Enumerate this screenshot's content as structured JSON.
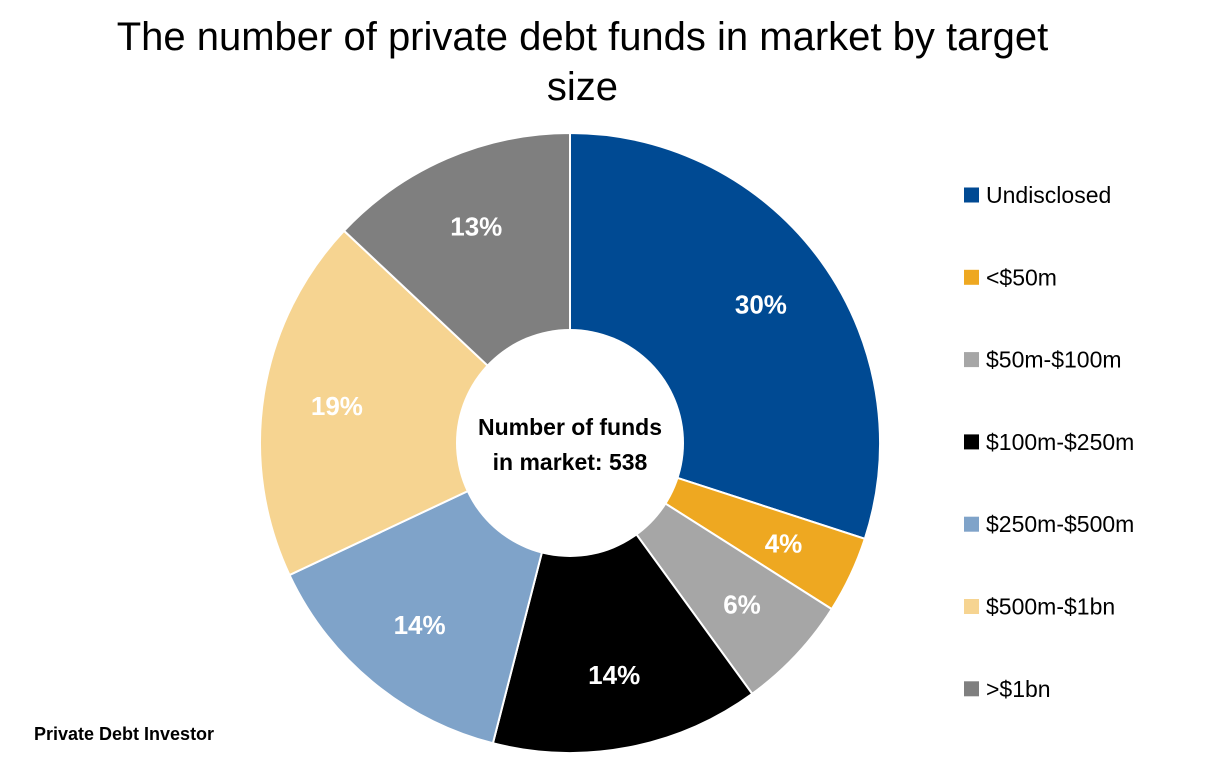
{
  "chart_data": {
    "type": "pie",
    "variant": "donut",
    "title": "The number of private debt funds in market by target size",
    "center_label": [
      "Number of funds",
      "in market: 538"
    ],
    "categories": [
      "Undisclosed",
      "<$50m",
      "$50m-$100m",
      "$100m-$250m",
      "$250m-$500m",
      "$500m-$1bn",
      ">$1bn"
    ],
    "values": [
      30,
      4,
      6,
      14,
      14,
      19,
      13
    ],
    "value_labels": [
      "30%",
      "4%",
      "6%",
      "14%",
      "14%",
      "19%",
      "13%"
    ],
    "unit": "%",
    "colors": [
      "#004A93",
      "#EEA821",
      "#A6A6A6",
      "#000000",
      "#7FA3C9",
      "#F6D491",
      "#7F7F7F"
    ],
    "legend_position": "right",
    "start_angle": "12 o'clock",
    "direction": "clockwise"
  },
  "source": "Private Debt Investor"
}
